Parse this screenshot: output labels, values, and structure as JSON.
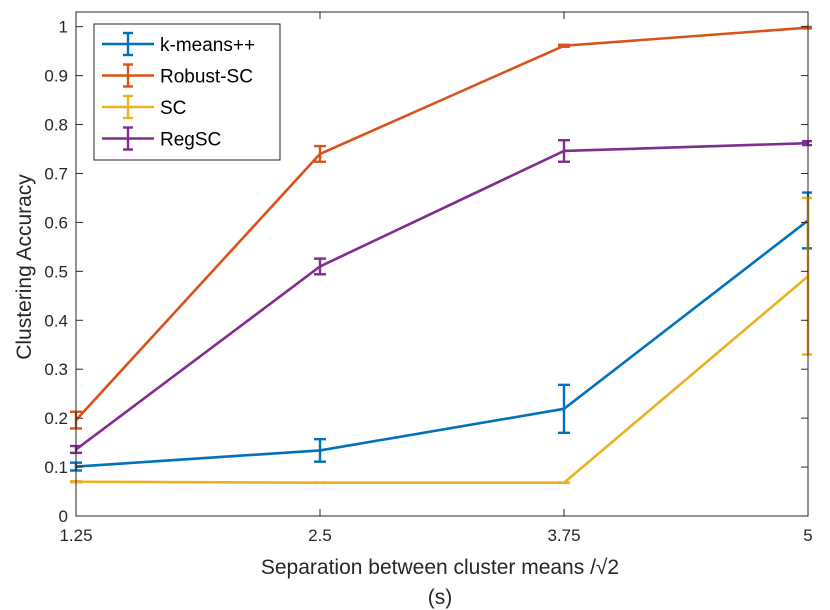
{
  "chart_data": {
    "type": "line",
    "title": "",
    "xlabel": "Separation between cluster means /√2",
    "xlabel_sub": "(s)",
    "ylabel": "Clustering Accuracy",
    "x": [
      1.25,
      2.5,
      3.75,
      5
    ],
    "x_tick_labels": [
      "1.25",
      "2.5",
      "3.75",
      "5"
    ],
    "xlim": [
      1.25,
      5
    ],
    "ylim": [
      0,
      1.03
    ],
    "y_ticks": [
      0,
      0.1,
      0.2,
      0.3,
      0.4,
      0.5,
      0.6,
      0.7,
      0.8,
      0.9,
      1
    ],
    "y_tick_labels": [
      "0",
      "0.1",
      "0.2",
      "0.3",
      "0.4",
      "0.5",
      "0.6",
      "0.7",
      "0.8",
      "0.9",
      "1"
    ],
    "grid": false,
    "legend_position": "top-left",
    "series": [
      {
        "name": "k-means++",
        "color": "#0072BD",
        "values": [
          0.101,
          0.134,
          0.219,
          0.604
        ],
        "errors": [
          0.008,
          0.023,
          0.049,
          0.057
        ]
      },
      {
        "name": "Robust-SC",
        "color": "#D95319",
        "values": [
          0.196,
          0.74,
          0.961,
          0.998
        ],
        "errors": [
          0.017,
          0.016,
          0.002,
          0.0015
        ]
      },
      {
        "name": "SC",
        "color": "#EDB120",
        "values": [
          0.07,
          0.068,
          0.068,
          0.49
        ],
        "errors": [
          0.001,
          0.0005,
          0.0005,
          0.16
        ]
      },
      {
        "name": "RegSC",
        "color": "#7E2F8E",
        "values": [
          0.136,
          0.51,
          0.746,
          0.762
        ],
        "errors": [
          0.007,
          0.016,
          0.022,
          0.004
        ]
      }
    ]
  }
}
